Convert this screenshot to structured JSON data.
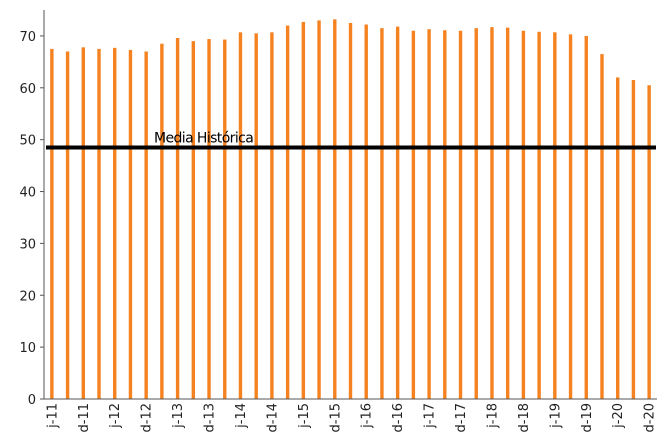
{
  "chart_data": {
    "type": "bar",
    "title": "",
    "xlabel": "",
    "ylabel": "",
    "ylim": [
      0,
      75
    ],
    "yticks": [
      0,
      10,
      20,
      30,
      40,
      50,
      60,
      70
    ],
    "grid": false,
    "legend": "none",
    "bar_color": "#F58220",
    "categories": [
      "j-11",
      "",
      "d-11",
      "",
      "j-12",
      "",
      "d-12",
      "",
      "j-13",
      "",
      "d-13",
      "",
      "j-14",
      "",
      "d-14",
      "",
      "j-15",
      "",
      "d-15",
      "",
      "j-16",
      "",
      "d-16",
      "",
      "j-17",
      "",
      "d-17",
      "",
      "j-18",
      "",
      "d-18",
      "",
      "j-19",
      "",
      "d-19",
      "",
      "j-20",
      "",
      "d-20"
    ],
    "values": [
      67.5,
      67.0,
      67.8,
      67.5,
      67.7,
      67.3,
      67.0,
      68.5,
      69.6,
      69.0,
      69.4,
      69.3,
      70.7,
      70.5,
      70.7,
      72.0,
      72.7,
      73.0,
      73.2,
      72.5,
      72.2,
      71.5,
      71.8,
      71.0,
      71.3,
      71.1,
      71.0,
      71.5,
      71.7,
      71.6,
      71.0,
      70.8,
      70.7,
      70.3,
      70.0,
      66.5,
      62.0,
      61.5,
      60.5
    ],
    "reference_line": {
      "label": "Media Histórica",
      "value": 48.5,
      "color": "#000000"
    }
  }
}
